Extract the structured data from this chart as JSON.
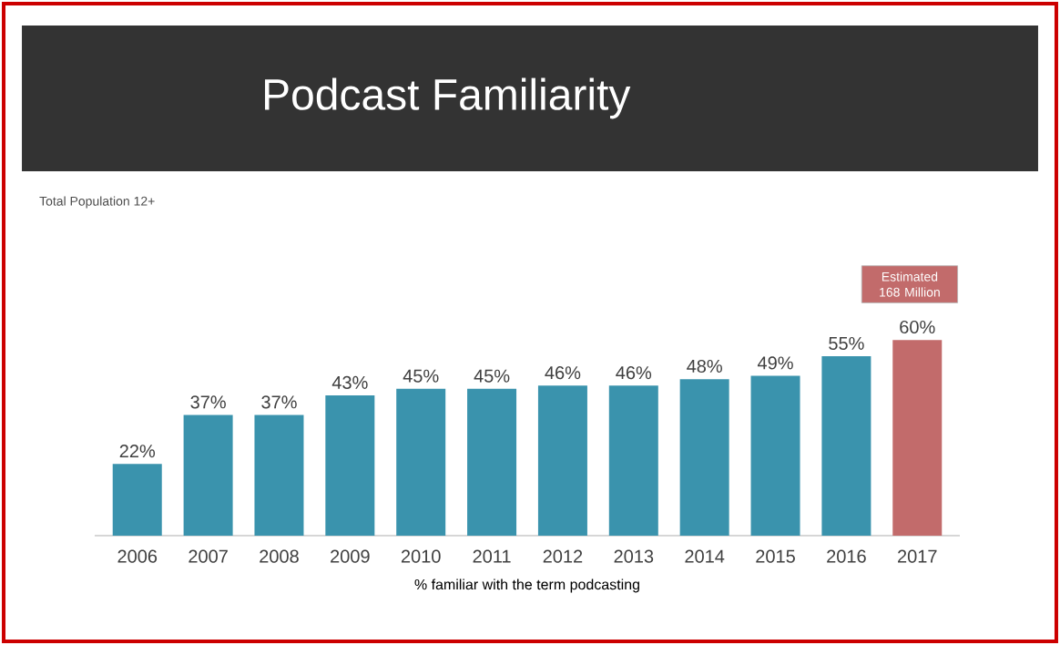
{
  "chart_data": {
    "type": "bar",
    "title": "Podcast Familiarity",
    "subtitle": "Total Population 12+",
    "xlabel": "% familiar with the term podcasting",
    "categories": [
      "2006",
      "2007",
      "2008",
      "2009",
      "2010",
      "2011",
      "2012",
      "2013",
      "2014",
      "2015",
      "2016",
      "2017"
    ],
    "values": [
      22,
      37,
      37,
      43,
      45,
      45,
      46,
      46,
      48,
      49,
      55,
      60
    ],
    "colors": [
      "#3a93ad",
      "#3a93ad",
      "#3a93ad",
      "#3a93ad",
      "#3a93ad",
      "#3a93ad",
      "#3a93ad",
      "#3a93ad",
      "#3a93ad",
      "#3a93ad",
      "#3a93ad",
      "#c26b6b"
    ],
    "value_labels": [
      "22%",
      "37%",
      "37%",
      "43%",
      "45%",
      "45%",
      "46%",
      "46%",
      "48%",
      "49%",
      "55%",
      "60%"
    ],
    "annotations": [
      "Estimated 168 Million"
    ]
  }
}
